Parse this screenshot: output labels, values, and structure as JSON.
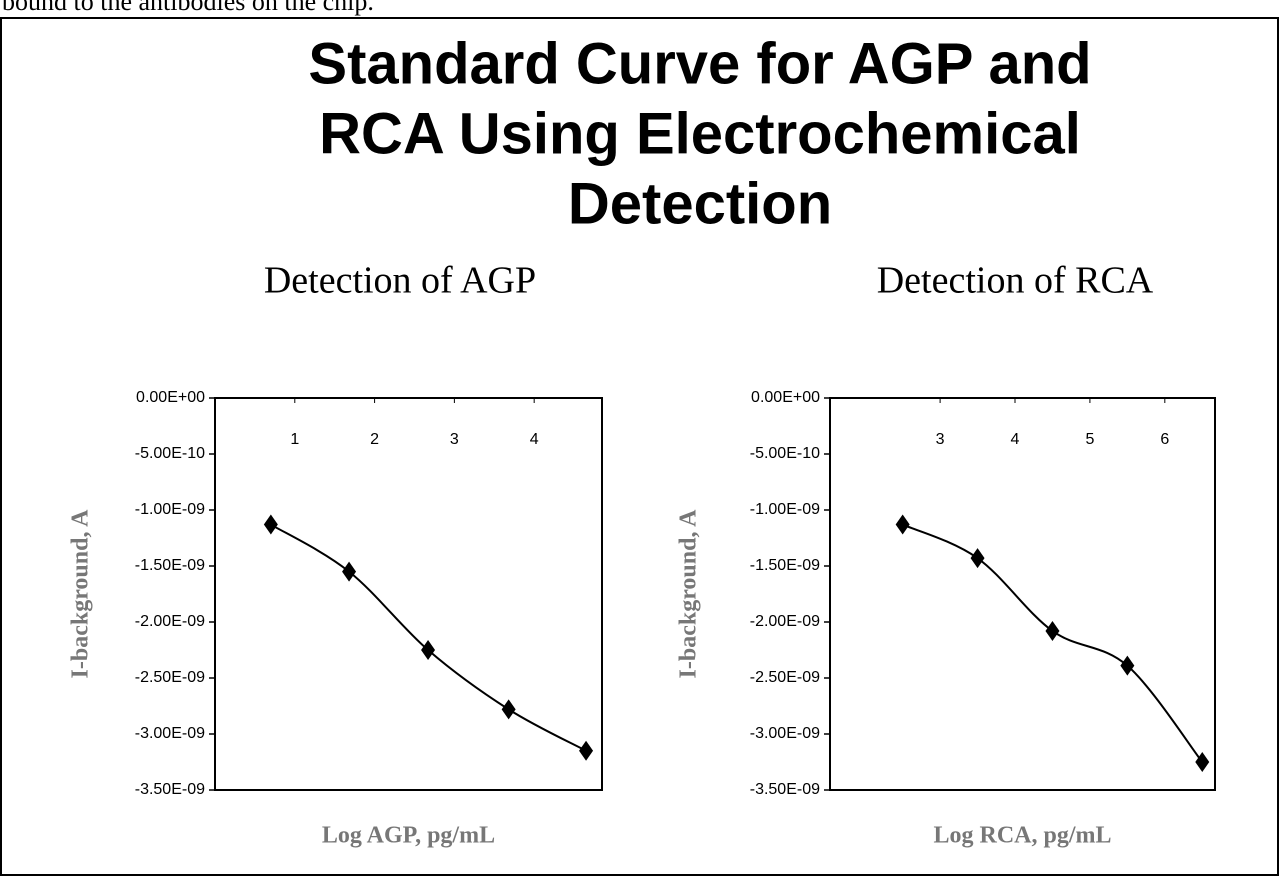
{
  "caption": "bound to the antibodies on the chip.",
  "title": [
    "Standard Curve for AGP and",
    "RCA Using Electrochemical",
    "Detection"
  ],
  "chart_data": [
    {
      "type": "line",
      "title": "Detection of AGP",
      "x_label": "Log AGP, pg/mL",
      "y_label": "I-background, A",
      "x": [
        0.7,
        1.68,
        2.67,
        3.68,
        4.65
      ],
      "series": [
        {
          "name": "AGP",
          "color": "#000000",
          "values": [
            -1.13e-09,
            -1.55e-09,
            -2.25e-09,
            -2.78e-09,
            -3.15e-09
          ]
        }
      ],
      "xlim": [
        0,
        4.85
      ],
      "xticks": [
        1,
        2,
        3,
        4
      ],
      "ylim": [
        -3.5e-09,
        0
      ],
      "yticks": [
        {
          "value": 0,
          "label": "0.00E+00"
        },
        {
          "value": -5e-10,
          "label": "-5.00E-10"
        },
        {
          "value": -1e-09,
          "label": "-1.00E-09"
        },
        {
          "value": -1.5e-09,
          "label": "-1.50E-09"
        },
        {
          "value": -2e-09,
          "label": "-2.00E-09"
        },
        {
          "value": -2.5e-09,
          "label": "-2.50E-09"
        },
        {
          "value": -3e-09,
          "label": "-3.00E-09"
        },
        {
          "value": -3.5e-09,
          "label": "-3.50E-09"
        }
      ]
    },
    {
      "type": "line",
      "title": "Detection of RCA",
      "x_label": "Log RCA, pg/mL",
      "y_label": "I-background, A",
      "x": [
        2.5,
        3.5,
        4.5,
        5.5,
        6.5
      ],
      "series": [
        {
          "name": "RCA",
          "color": "#000000",
          "values": [
            -1.13e-09,
            -1.43e-09,
            -2.08e-09,
            -2.39e-09,
            -3.25e-09
          ]
        }
      ],
      "xlim": [
        1.53,
        6.67
      ],
      "xticks": [
        3,
        4,
        5,
        6
      ],
      "ylim": [
        -3.5e-09,
        0
      ],
      "yticks": [
        {
          "value": 0,
          "label": "0.00E+00"
        },
        {
          "value": -5e-10,
          "label": "-5.00E-10"
        },
        {
          "value": -1e-09,
          "label": "-1.00E-09"
        },
        {
          "value": -1.5e-09,
          "label": "-1.50E-09"
        },
        {
          "value": -2e-09,
          "label": "-2.00E-09"
        },
        {
          "value": -2.5e-09,
          "label": "-2.50E-09"
        },
        {
          "value": -3e-09,
          "label": "-3.00E-09"
        },
        {
          "value": -3.5e-09,
          "label": "-3.50E-09"
        }
      ]
    }
  ]
}
